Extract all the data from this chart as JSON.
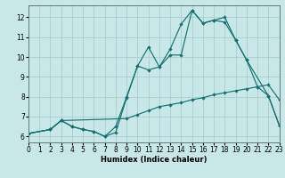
{
  "xlabel": "Humidex (Indice chaleur)",
  "bg_color": "#c8e8e8",
  "grid_color": "#aacece",
  "line_color": "#1a7070",
  "xlim": [
    0,
    23
  ],
  "ylim": [
    5.7,
    12.6
  ],
  "xticks": [
    0,
    1,
    2,
    3,
    4,
    5,
    6,
    7,
    8,
    9,
    10,
    11,
    12,
    13,
    14,
    15,
    16,
    17,
    18,
    19,
    20,
    21,
    22,
    23
  ],
  "yticks": [
    6,
    7,
    8,
    9,
    10,
    11,
    12
  ],
  "series": [
    {
      "x": [
        0,
        2,
        3,
        4,
        5,
        6,
        7,
        8,
        9,
        10,
        11,
        12,
        13,
        14,
        15,
        16,
        17,
        18,
        19,
        20,
        21,
        22,
        23
      ],
      "y": [
        6.15,
        6.35,
        6.8,
        6.5,
        6.35,
        6.25,
        6.0,
        6.2,
        7.95,
        9.55,
        10.5,
        9.5,
        10.1,
        10.1,
        12.35,
        11.7,
        11.85,
        12.0,
        10.85,
        9.85,
        8.5,
        8.05,
        6.55
      ]
    },
    {
      "x": [
        0,
        2,
        3,
        4,
        5,
        6,
        7,
        8,
        9,
        10,
        11,
        12,
        13,
        14,
        15,
        16,
        17,
        18,
        19,
        20,
        22,
        23
      ],
      "y": [
        6.15,
        6.35,
        6.8,
        6.5,
        6.35,
        6.25,
        6.0,
        6.5,
        8.0,
        9.55,
        9.35,
        9.5,
        10.4,
        11.65,
        12.35,
        11.7,
        11.85,
        11.75,
        10.85,
        9.85,
        8.05,
        6.55
      ]
    },
    {
      "x": [
        0,
        2,
        3,
        9,
        10,
        11,
        12,
        13,
        14,
        15,
        16,
        17,
        18,
        19,
        20,
        21,
        22,
        23
      ],
      "y": [
        6.15,
        6.35,
        6.8,
        6.9,
        7.1,
        7.3,
        7.5,
        7.6,
        7.7,
        7.85,
        7.95,
        8.1,
        8.2,
        8.3,
        8.4,
        8.5,
        8.6,
        7.85
      ]
    }
  ]
}
